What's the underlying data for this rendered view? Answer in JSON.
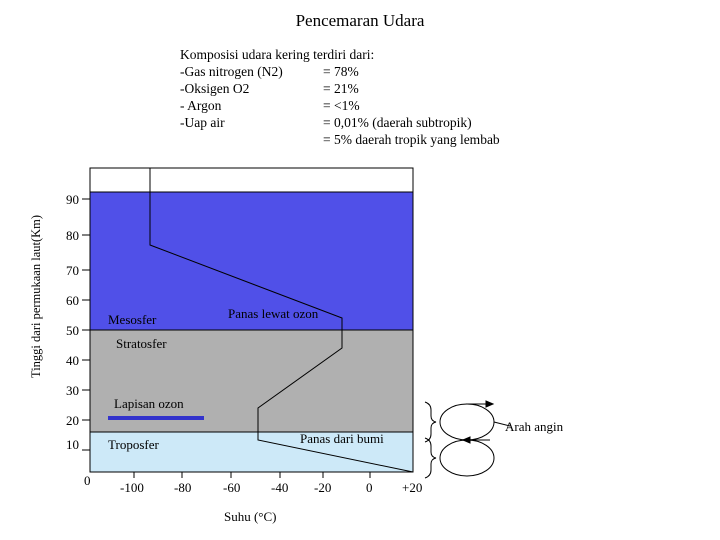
{
  "title": "Pencemaran Udara",
  "composition": {
    "heading": "Komposisi udara kering terdiri dari:",
    "rows": [
      {
        "name": "-Gas nitrogen (N2)",
        "value": "= 78%"
      },
      {
        "name": "-Oksigen O2",
        "value": "= 21%"
      },
      {
        "name": "- Argon",
        "value": "= <1%"
      },
      {
        "name": "-Uap air",
        "value": "= 0,01% (daerah subtropik)"
      },
      {
        "name": "",
        "value": "= 5% daerah tropik yang lembab"
      }
    ]
  },
  "axes": {
    "y_label": "Tinggi dari permukaan laut(Km)",
    "x_label": "Suhu (°C)",
    "y_ticks": [
      "90",
      "80",
      "70",
      "60",
      "50",
      "40",
      "30",
      "20",
      "10"
    ],
    "origin": "0",
    "x_ticks": [
      "-100",
      "-80",
      "-60",
      "-40",
      "-20",
      "0",
      "+20"
    ]
  },
  "layers": {
    "mesosfer": "Mesosfer",
    "stratosfer": "Stratosfer",
    "ozon": "Lapisan ozon",
    "troposfer": "Troposfer",
    "panas_ozon": "Panas lewat ozon",
    "panas_bumi": "Panas dari bumi",
    "arah_angin": "Arah angin"
  },
  "colors": {
    "mesosfer": "#5050e8",
    "stratosfer": "#b0b0b0",
    "troposfer": "#cde9f8",
    "ozone_line": "#3333cc"
  }
}
